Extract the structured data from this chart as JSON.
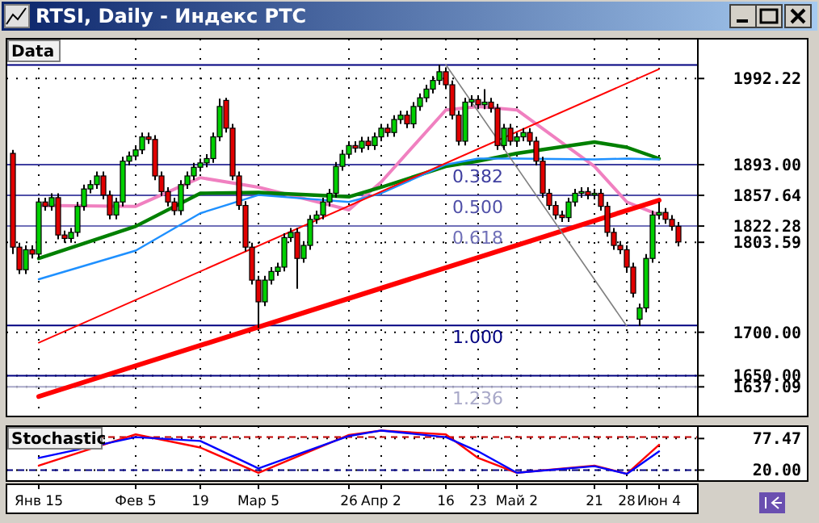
{
  "chart_data": [
    {
      "type": "candlestick",
      "title": "RTSI, Daily - Индекс РТС",
      "subtitle": "Data",
      "categories": [
        null,
        null,
        null,
        null,
        "Янв 15",
        null,
        null,
        null,
        null,
        null,
        null,
        null,
        null,
        null,
        null,
        null,
        null,
        null,
        null,
        "Фев 5",
        null,
        null,
        null,
        null,
        null,
        null,
        null,
        null,
        null,
        "19",
        null,
        null,
        null,
        null,
        null,
        null,
        null,
        null,
        "Мар 5",
        null,
        null,
        null,
        null,
        null,
        null,
        null,
        null,
        null,
        null,
        null,
        null,
        null,
        "26",
        null,
        null,
        null,
        null,
        "Апр 2",
        null,
        null,
        null,
        null,
        null,
        null,
        null,
        null,
        null,
        "16",
        null,
        null,
        null,
        null,
        "23",
        null,
        null,
        null,
        null,
        null,
        "Май 2",
        null,
        null,
        null,
        null,
        null,
        null,
        null,
        null,
        null,
        null,
        null,
        "21",
        null,
        null,
        null,
        null,
        "28",
        null,
        null,
        null,
        null,
        "Июн 4",
        null,
        null,
        null
      ],
      "ohlc": [
        [
          1906,
          1910,
          1790,
          1798
        ],
        [
          1798,
          1803,
          1767,
          1772
        ],
        [
          1772,
          1800,
          1767,
          1795
        ],
        [
          1795,
          1800,
          1785,
          1790
        ],
        [
          1790,
          1855,
          1785,
          1850
        ],
        [
          1850,
          1855,
          1840,
          1845
        ],
        [
          1845,
          1860,
          1840,
          1855
        ],
        [
          1855,
          1860,
          1807,
          1812
        ],
        [
          1812,
          1817,
          1803,
          1808
        ],
        [
          1808,
          1820,
          1803,
          1815
        ],
        [
          1815,
          1850,
          1810,
          1845
        ],
        [
          1845,
          1870,
          1840,
          1865
        ],
        [
          1865,
          1875,
          1860,
          1870
        ],
        [
          1870,
          1885,
          1865,
          1880
        ],
        [
          1880,
          1885,
          1853,
          1858
        ],
        [
          1858,
          1863,
          1830,
          1835
        ],
        [
          1835,
          1855,
          1830,
          1850
        ],
        [
          1850,
          1902,
          1845,
          1897
        ],
        [
          1897,
          1908,
          1892,
          1903
        ],
        [
          1903,
          1915,
          1898,
          1910
        ],
        [
          1910,
          1930,
          1905,
          1925
        ],
        [
          1925,
          1930,
          1917,
          1922
        ],
        [
          1922,
          1927,
          1875,
          1880
        ],
        [
          1880,
          1885,
          1857,
          1862
        ],
        [
          1862,
          1867,
          1845,
          1850
        ],
        [
          1850,
          1855,
          1835,
          1840
        ],
        [
          1840,
          1875,
          1835,
          1870
        ],
        [
          1870,
          1885,
          1865,
          1880
        ],
        [
          1880,
          1895,
          1875,
          1890
        ],
        [
          1890,
          1900,
          1885,
          1895
        ],
        [
          1895,
          1905,
          1890,
          1900
        ],
        [
          1900,
          1930,
          1895,
          1925
        ],
        [
          1925,
          1969,
          1920,
          1960
        ],
        [
          1967,
          1970,
          1930,
          1935
        ],
        [
          1935,
          1940,
          1875,
          1880
        ],
        [
          1880,
          1885,
          1841,
          1846
        ],
        [
          1846,
          1851,
          1793,
          1798
        ],
        [
          1798,
          1803,
          1755,
          1760
        ],
        [
          1760,
          1765,
          1705,
          1735
        ],
        [
          1735,
          1765,
          1730,
          1760
        ],
        [
          1760,
          1775,
          1755,
          1770
        ],
        [
          1770,
          1780,
          1765,
          1775
        ],
        [
          1775,
          1814,
          1770,
          1809
        ],
        [
          1809,
          1820,
          1804,
          1815
        ],
        [
          1815,
          1820,
          1750,
          1785
        ],
        [
          1785,
          1805,
          1780,
          1800
        ],
        [
          1800,
          1835,
          1795,
          1830
        ],
        [
          1830,
          1840,
          1825,
          1835
        ],
        [
          1835,
          1855,
          1830,
          1850
        ],
        [
          1850,
          1865,
          1845,
          1860
        ],
        [
          1860,
          1896,
          1855,
          1891
        ],
        [
          1891,
          1910,
          1886,
          1905
        ],
        [
          1905,
          1920,
          1900,
          1915
        ],
        [
          1915,
          1920,
          1907,
          1912
        ],
        [
          1912,
          1925,
          1907,
          1920
        ],
        [
          1920,
          1925,
          1910,
          1915
        ],
        [
          1915,
          1930,
          1910,
          1925
        ],
        [
          1925,
          1940,
          1920,
          1935
        ],
        [
          1935,
          1940,
          1925,
          1930
        ],
        [
          1930,
          1950,
          1925,
          1945
        ],
        [
          1945,
          1955,
          1940,
          1950
        ],
        [
          1950,
          1955,
          1935,
          1940
        ],
        [
          1940,
          1965,
          1935,
          1960
        ],
        [
          1960,
          1975,
          1955,
          1970
        ],
        [
          1970,
          1985,
          1965,
          1980
        ],
        [
          1980,
          1995,
          1975,
          1990
        ],
        [
          1990,
          2008,
          1985,
          2000
        ],
        [
          2000,
          2005,
          1980,
          1985
        ],
        [
          1985,
          1990,
          1945,
          1950
        ],
        [
          1950,
          1955,
          1915,
          1920
        ],
        [
          1920,
          1970,
          1915,
          1965
        ],
        [
          1965,
          1973,
          1960,
          1968
        ],
        [
          1968,
          1973,
          1957,
          1962
        ],
        [
          1962,
          1980,
          1957,
          1965
        ],
        [
          1965,
          1970,
          1953,
          1958
        ],
        [
          1958,
          1963,
          1910,
          1915
        ],
        [
          1915,
          1940,
          1910,
          1935
        ],
        [
          1935,
          1940,
          1915,
          1920
        ],
        [
          1920,
          1930,
          1915,
          1925
        ],
        [
          1925,
          1935,
          1920,
          1930
        ],
        [
          1930,
          1935,
          1915,
          1920
        ],
        [
          1920,
          1925,
          1892,
          1897
        ],
        [
          1897,
          1902,
          1855,
          1860
        ],
        [
          1860,
          1865,
          1841,
          1846
        ],
        [
          1846,
          1851,
          1830,
          1835
        ],
        [
          1835,
          1840,
          1827,
          1832
        ],
        [
          1832,
          1855,
          1827,
          1850
        ],
        [
          1850,
          1865,
          1845,
          1860
        ],
        [
          1860,
          1867,
          1855,
          1862
        ],
        [
          1862,
          1867,
          1853,
          1858
        ],
        [
          1858,
          1865,
          1853,
          1860
        ],
        [
          1860,
          1865,
          1840,
          1845
        ],
        [
          1845,
          1850,
          1810,
          1815
        ],
        [
          1815,
          1820,
          1795,
          1800
        ],
        [
          1800,
          1805,
          1790,
          1795
        ],
        [
          1795,
          1800,
          1770,
          1775
        ],
        [
          1775,
          1780,
          1740,
          1745
        ],
        [
          1715,
          1733,
          1707,
          1728
        ],
        [
          1728,
          1790,
          1723,
          1785
        ],
        [
          1785,
          1840,
          1780,
          1835
        ],
        [
          1835,
          1850,
          1830,
          1838
        ],
        [
          1838,
          1843,
          1825,
          1830
        ],
        [
          1830,
          1835,
          1817,
          1822
        ],
        [
          1822,
          1827,
          1799,
          1804
        ]
      ],
      "series": [
        {
          "type": "line",
          "color": "#f080c0",
          "x": [
            "Янв 15",
            "Фев 5",
            "19",
            "Мар 5",
            "26",
            "Апр 2",
            "16",
            "23",
            "Май 2",
            "21",
            "28",
            "Июн 4"
          ],
          "values": [
            1846,
            1845,
            1878,
            1867,
            1841,
            1873,
            1956,
            1960,
            1956,
            1891,
            1850,
            1835
          ]
        },
        {
          "type": "line",
          "color": "#008000",
          "x": [
            "Янв 15",
            "Фев 5",
            "19",
            "Мар 5",
            "26",
            "Апр 2",
            "16",
            "23",
            "Май 2",
            "21",
            "28",
            "Июн 4"
          ],
          "values": [
            1785,
            1822,
            1860,
            1861,
            1856,
            1867,
            1891,
            1897,
            1906,
            1919,
            1913,
            1900
          ]
        },
        {
          "type": "line",
          "color": "#1e90ff",
          "x": [
            "Янв 15",
            "Фев 5",
            "19",
            "Мар 5",
            "26",
            "Апр 2",
            "16",
            "23",
            "Май 2",
            "21",
            "28",
            "Июн 4"
          ],
          "values": [
            1761,
            1794,
            1837,
            1858,
            1850,
            1860,
            1893,
            1900,
            1900,
            1899,
            1900,
            1899
          ]
        },
        {
          "type": "line",
          "color": "#ff0000",
          "x": [
            "Янв 15",
            "Июн 4"
          ],
          "values": [
            1626,
            1852
          ]
        },
        {
          "type": "line",
          "color": "#ff0000",
          "x": [
            "Янв 15",
            "Июн 4"
          ],
          "values": [
            1688,
            2003
          ]
        },
        {
          "type": "line",
          "color": "#808080",
          "x": [
            "16",
            "28"
          ],
          "values": [
            2008,
            1707
          ]
        }
      ],
      "ylim": [
        1603,
        2038
      ],
      "yticks": [
        {
          "value": 1992.22,
          "label": "1992.22"
        },
        {
          "value": 1893,
          "label": "1893.00"
        },
        {
          "value": 1857.64,
          "label": "1857.64"
        },
        {
          "value": 1822.28,
          "label": "1822.28"
        },
        {
          "value": 1803.59,
          "label": "1803.59"
        },
        {
          "value": 1700,
          "label": "1700.00"
        },
        {
          "value": 1650,
          "label": "1650.00"
        },
        {
          "value": 1637.09,
          "label": "1637.09"
        }
      ],
      "ref_lines": [
        {
          "axis": "y",
          "value": 2007.8,
          "color": "#000080"
        },
        {
          "axis": "y",
          "value": 1893,
          "color": "#4040a0"
        },
        {
          "axis": "y",
          "value": 1857.64,
          "color": "#5050a8"
        },
        {
          "axis": "y",
          "value": 1822.28,
          "color": "#7070b8"
        },
        {
          "axis": "y",
          "value": 1707.8,
          "color": "#000080"
        },
        {
          "axis": "y",
          "value": 1650,
          "color": "#000080"
        },
        {
          "axis": "y",
          "value": 1637.09,
          "color": "#a8a8c8"
        }
      ],
      "annotations": [
        {
          "text": "0.382",
          "y": 1893
        },
        {
          "text": "0.500",
          "y": 1857.64
        },
        {
          "text": "0.618",
          "y": 1822.28
        },
        {
          "text": "1.000",
          "y": 1707.8
        },
        {
          "text": "1.236",
          "y": 1637.09
        }
      ],
      "grid": true,
      "tick_labels": "y"
    },
    {
      "type": "line",
      "title": "Stochastic",
      "categories": [
        null,
        null,
        null,
        null,
        "Янв 15",
        null,
        null,
        null,
        null,
        null,
        null,
        null,
        null,
        null,
        null,
        null,
        null,
        null,
        null,
        "Фев 5",
        null,
        null,
        null,
        null,
        null,
        null,
        null,
        null,
        null,
        "19",
        null,
        null,
        null,
        null,
        null,
        null,
        null,
        null,
        "Мар 5",
        null,
        null,
        null,
        null,
        null,
        null,
        null,
        null,
        null,
        null,
        null,
        null,
        null,
        "26",
        null,
        null,
        null,
        null,
        "Апр 2",
        null,
        null,
        null,
        null,
        null,
        null,
        null,
        null,
        null,
        "16",
        null,
        null,
        null,
        null,
        "23",
        null,
        null,
        null,
        null,
        null,
        "Май 2",
        null,
        null,
        null,
        null,
        null,
        null,
        null,
        null,
        null,
        null,
        null,
        "21",
        null,
        null,
        null,
        null,
        "28",
        null,
        null,
        null,
        null,
        "Июн 4",
        null,
        null,
        null
      ],
      "series": [
        {
          "color": "#ff0000",
          "x": [
            "Янв 15",
            "Фев 5",
            "19",
            "Мар 5",
            "26",
            "Апр 2",
            "16",
            "23",
            "Май 2",
            "21",
            "28",
            "Июн 4"
          ],
          "values": [
            28,
            85,
            61,
            15,
            84,
            92,
            85,
            42,
            15,
            28,
            13,
            66
          ]
        },
        {
          "color": "#0000ff",
          "x": [
            "Янв 15",
            "Фев 5",
            "19",
            "Мар 5",
            "26",
            "Апр 2",
            "16",
            "23",
            "Май 2",
            "21",
            "28",
            "Июн 4"
          ],
          "values": [
            42,
            80,
            73,
            23,
            82,
            92,
            80,
            54,
            15,
            27,
            13,
            54
          ]
        }
      ],
      "ylim": [
        0,
        100
      ],
      "yticks": [
        {
          "value": 77.47,
          "label": "77.47"
        },
        {
          "value": 20,
          "label": "20.00"
        }
      ],
      "ref_lines": [
        {
          "axis": "y",
          "value": 80,
          "color": "#c00000",
          "line_style": "dashed"
        },
        {
          "axis": "y",
          "value": 20,
          "color": "#000080",
          "line_style": "dashed"
        }
      ],
      "grid": true
    }
  ]
}
